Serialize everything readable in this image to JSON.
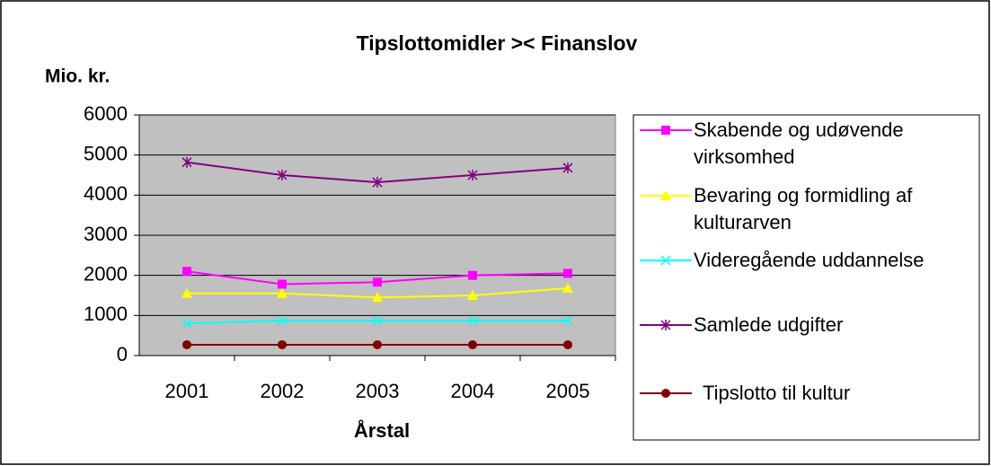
{
  "chart_data": {
    "type": "line",
    "title": "Tipslottomidler >< Finanslov",
    "y_label": "Mio. kr.",
    "x_label": "Årstal",
    "categories": [
      "2001",
      "2002",
      "2003",
      "2004",
      "2005"
    ],
    "series": [
      {
        "name": "Skabende og udøvende virksomhed",
        "color": "#ff00ff",
        "marker": "square",
        "values": [
          2100,
          1780,
          1830,
          2000,
          2050
        ]
      },
      {
        "name": "Bevaring og formidling af kulturarven",
        "color": "#ffff00",
        "marker": "triangle",
        "values": [
          1550,
          1550,
          1450,
          1500,
          1680
        ]
      },
      {
        "name": "Videregående uddannelse",
        "color": "#00ffff",
        "marker": "x",
        "values": [
          800,
          870,
          870,
          870,
          870
        ]
      },
      {
        "name": "Samlede udgifter",
        "color": "#800080",
        "marker": "asterisk",
        "values": [
          4820,
          4500,
          4320,
          4500,
          4680
        ]
      },
      {
        "name": "Tipslotto til kultur",
        "color": "#800000",
        "marker": "circle",
        "values": [
          270,
          270,
          270,
          270,
          270
        ]
      }
    ],
    "ylim": [
      0,
      6000
    ],
    "yticks": [
      0,
      1000,
      2000,
      3000,
      4000,
      5000,
      6000
    ],
    "grid": true,
    "legend": "right"
  }
}
